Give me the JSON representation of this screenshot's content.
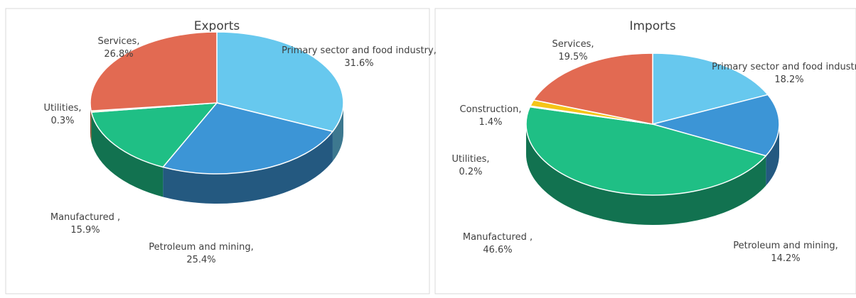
{
  "chart_data": [
    {
      "type": "pie",
      "title": "Exports",
      "categories": [
        "Primary sector and food industry,",
        "Petroleum and mining,",
        "Manufactured ,",
        "Utilities,",
        "Services,"
      ],
      "values": [
        31.6,
        25.4,
        15.9,
        0.3,
        26.8
      ],
      "value_labels": [
        "31.6%",
        "25.4%",
        "15.9%",
        "0.3%",
        "26.8%"
      ],
      "colors": [
        "#67c8ee",
        "#3c95d6",
        "#1fbf85",
        "#f5c518",
        "#e26a52"
      ]
    },
    {
      "type": "pie",
      "title": "Imports",
      "categories": [
        "Primary sector and food industry,",
        "Petroleum and mining,",
        "Manufactured ,",
        "Utilities,",
        "Construction,",
        "Services,"
      ],
      "values": [
        18.2,
        14.2,
        46.6,
        0.2,
        1.4,
        19.5
      ],
      "value_labels": [
        "18.2%",
        "14.2%",
        "46.6%",
        "0.2%",
        "1.4%",
        "19.5%"
      ],
      "colors": [
        "#67c8ee",
        "#3c95d6",
        "#1fbf85",
        "#8fd14f",
        "#f5c518",
        "#e26a52"
      ]
    }
  ]
}
